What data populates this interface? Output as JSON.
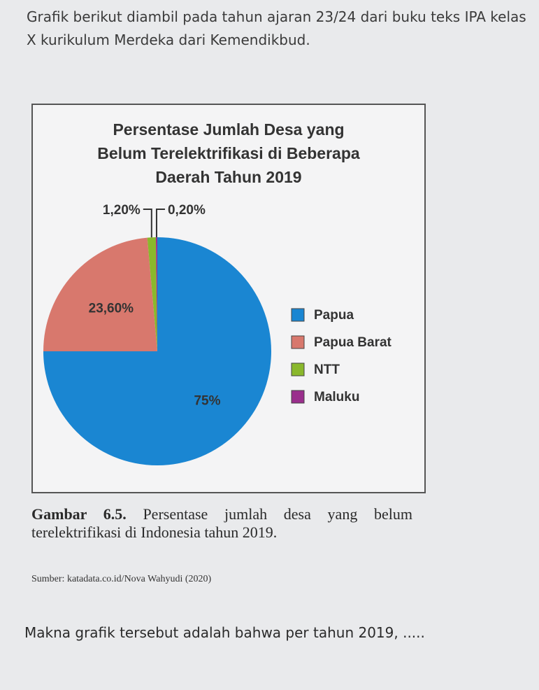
{
  "intro": "Grafik berikut diambil pada tahun ajaran 23/24 dari buku teks IPA kelas X kurikulum Merdeka dari Kemendikbud.",
  "chart_data": {
    "type": "pie",
    "title": "Persentase Jumlah Desa yang Belum Terelektrifikasi di Beberapa Daerah Tahun 2019",
    "categories": [
      "Papua",
      "Papua Barat",
      "NTT",
      "Maluku"
    ],
    "values": [
      75,
      23.6,
      1.2,
      0.2
    ],
    "value_labels": [
      "75%",
      "23,60%",
      "1,20%",
      "0,20%"
    ],
    "colors": [
      "#1a86d2",
      "#d8786d",
      "#8ab82c",
      "#9a2e8c"
    ],
    "legend": "right"
  },
  "caption": {
    "label": "Gambar 6.5.",
    "text": "Persentase jumlah desa yang belum terelektrifikasi di Indonesia tahun 2019."
  },
  "source": "Sumber: katadata.co.id/Nova Wahyudi (2020)",
  "question": "Makna grafik tersebut adalah bahwa per tahun 2019, ....."
}
